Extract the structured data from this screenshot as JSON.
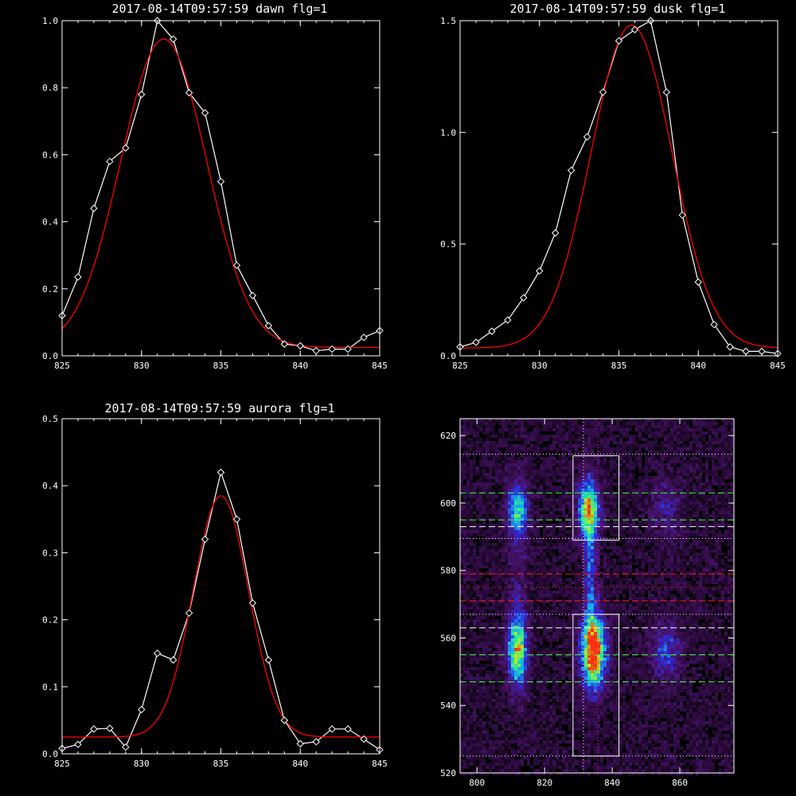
{
  "chart_data": [
    {
      "type": "line",
      "title": "2017-08-14T09:57:59 dawn flg=1",
      "xlim": [
        825,
        845
      ],
      "ylim": [
        0,
        1.0
      ],
      "x_ticks": [
        "825",
        "830",
        "835",
        "840",
        "845"
      ],
      "y_ticks": [
        "0.0",
        "0.2",
        "0.4",
        "0.6",
        "0.8",
        "1.0"
      ],
      "series": [
        {
          "color": "#ffffff",
          "marker": "diamond",
          "x": [
            825,
            826,
            827,
            828,
            829,
            830,
            831,
            832,
            833,
            834,
            835,
            836,
            837,
            838,
            839,
            840,
            841,
            842,
            843,
            844,
            845
          ],
          "y": [
            0.12,
            0.235,
            0.44,
            0.58,
            0.62,
            0.78,
            1.0,
            0.945,
            0.785,
            0.725,
            0.52,
            0.27,
            0.18,
            0.09,
            0.035,
            0.03,
            0.015,
            0.02,
            0.02,
            0.055,
            0.075
          ]
        },
        {
          "color": "#ff0000",
          "fit": "gaussian",
          "amplitude": 0.92,
          "center": 831.4,
          "sigma": 2.7,
          "offset": 0.025
        }
      ]
    },
    {
      "type": "line",
      "title": "2017-08-14T09:57:59 dusk flg=1",
      "xlim": [
        825,
        845
      ],
      "ylim": [
        0,
        1.5
      ],
      "x_ticks": [
        "825",
        "830",
        "835",
        "840",
        "845"
      ],
      "y_ticks": [
        "0.0",
        "0.5",
        "1.0",
        "1.5"
      ],
      "series": [
        {
          "color": "#ffffff",
          "marker": "diamond",
          "x": [
            825,
            826,
            827,
            828,
            829,
            830,
            831,
            832,
            833,
            834,
            835,
            836,
            837,
            838,
            839,
            840,
            841,
            842,
            843,
            844,
            845
          ],
          "y": [
            0.04,
            0.06,
            0.11,
            0.16,
            0.26,
            0.38,
            0.55,
            0.83,
            0.98,
            1.18,
            1.41,
            1.46,
            1.5,
            1.18,
            0.63,
            0.33,
            0.14,
            0.04,
            0.02,
            0.02,
            0.01
          ]
        },
        {
          "color": "#ff0000",
          "fit": "gaussian",
          "amplitude": 1.445,
          "center": 835.8,
          "sigma": 2.55,
          "offset": 0.035
        }
      ]
    },
    {
      "type": "line",
      "title": "2017-08-14T09:57:59 aurora flg=1",
      "xlim": [
        825,
        845
      ],
      "ylim": [
        0,
        0.5
      ],
      "x_ticks": [
        "825",
        "830",
        "835",
        "840",
        "845"
      ],
      "y_ticks": [
        "0.0",
        "0.1",
        "0.2",
        "0.3",
        "0.4",
        "0.5"
      ],
      "series": [
        {
          "color": "#ffffff",
          "marker": "diamond",
          "x": [
            825,
            826,
            827,
            828,
            829,
            830,
            831,
            832,
            833,
            834,
            835,
            836,
            837,
            838,
            839,
            840,
            841,
            842,
            843,
            844,
            845
          ],
          "y": [
            0.008,
            0.014,
            0.037,
            0.038,
            0.01,
            0.066,
            0.15,
            0.14,
            0.21,
            0.32,
            0.42,
            0.35,
            0.225,
            0.14,
            0.05,
            0.015,
            0.018,
            0.037,
            0.037,
            0.022,
            0.006
          ]
        },
        {
          "color": "#ff0000",
          "fit": "gaussian",
          "amplitude": 0.36,
          "center": 835.0,
          "sigma": 1.75,
          "offset": 0.025
        }
      ]
    },
    {
      "type": "heatmap",
      "xlim": [
        795,
        876
      ],
      "ylim": [
        520,
        625
      ],
      "x_ticks": [
        "800",
        "820",
        "840",
        "860"
      ],
      "y_ticks": [
        "520",
        "540",
        "560",
        "580",
        "600",
        "620"
      ],
      "colormap": [
        "#000000",
        "#2a0a3a",
        "#4a1472",
        "#2a2ad8",
        "#19a8f0",
        "#20e8a0",
        "#b8f020",
        "#ff3010"
      ],
      "blobs": [
        {
          "x": 812,
          "y": 598,
          "sx": 2.0,
          "sy": 5.5,
          "amp": 0.55
        },
        {
          "x": 812,
          "y": 556,
          "sx": 2.0,
          "sy": 7.5,
          "amp": 0.7
        },
        {
          "x": 833,
          "y": 598,
          "sx": 2.2,
          "sy": 6.0,
          "amp": 0.7
        },
        {
          "x": 834.5,
          "y": 556,
          "sx": 2.4,
          "sy": 7.5,
          "amp": 1.0
        },
        {
          "x": 833.5,
          "y": 580,
          "sx": 1.2,
          "sy": 15.0,
          "amp": 0.32
        },
        {
          "x": 856,
          "y": 556,
          "sx": 3.0,
          "sy": 6.0,
          "amp": 0.3
        },
        {
          "x": 856,
          "y": 598,
          "sx": 3.0,
          "sy": 6.0,
          "amp": 0.2
        },
        {
          "x": 812,
          "y": 578,
          "sx": 2.0,
          "sy": 12.0,
          "amp": 0.12
        }
      ],
      "boxes": [
        {
          "x": [
            828.4,
            842.0
          ],
          "y": [
            589,
            614
          ],
          "color": "#ffffff"
        },
        {
          "x": [
            828.4,
            842.0
          ],
          "y": [
            525,
            567
          ],
          "color": "#ffffff"
        }
      ],
      "hlines": [
        {
          "y": 614.5,
          "color": "#ffffff",
          "style": "dotted"
        },
        {
          "y": 603,
          "color": "#40ff40",
          "style": "dashed"
        },
        {
          "y": 595,
          "color": "#40ff40",
          "style": "dashed"
        },
        {
          "y": 593,
          "color": "#ffffff",
          "style": "dashed"
        },
        {
          "y": 589.5,
          "color": "#ffffff",
          "style": "dotted"
        },
        {
          "y": 579,
          "color": "#ff2020",
          "style": "dashed"
        },
        {
          "y": 575,
          "color": "#ff2020",
          "style": "dotted"
        },
        {
          "y": 571,
          "color": "#ff2020",
          "style": "dashed"
        },
        {
          "y": 567,
          "color": "#ffffff",
          "style": "dotted"
        },
        {
          "y": 563,
          "color": "#ffffff",
          "style": "dashed"
        },
        {
          "y": 555,
          "color": "#40ff40",
          "style": "dashed"
        },
        {
          "y": 547,
          "color": "#40ff40",
          "style": "dashed"
        },
        {
          "y": 525,
          "color": "#ffffff",
          "style": "dotted"
        }
      ],
      "vlines": [
        {
          "x": 831.5,
          "color": "#ffffff",
          "style": "dotted"
        },
        {
          "x": 835.8,
          "color": "#ff00ff",
          "style": "dotted"
        }
      ]
    }
  ]
}
